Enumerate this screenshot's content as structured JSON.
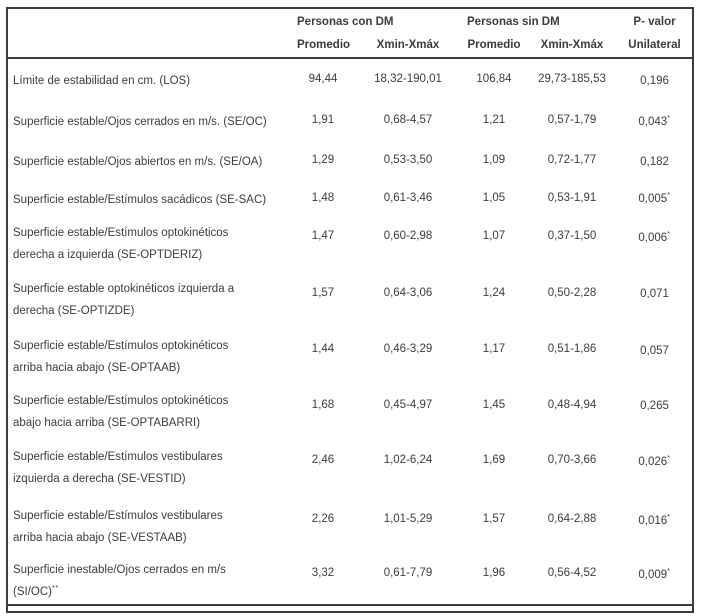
{
  "colors": {
    "text": "#3c3c3c",
    "border": "#3c3c3c",
    "background": "#ffffff"
  },
  "table": {
    "header": {
      "group_con_dm": "Personas con DM",
      "group_sin_dm": "Personas sin DM",
      "pvalor_line1": "P- valor",
      "pvalor_line2": "Unilateral",
      "sub_promedio_con": "Promedio",
      "sub_range_con": "Xmin-Xmáx",
      "sub_promedio_sin": "Promedio",
      "sub_range_sin": "Xmin-Xmáx"
    },
    "rows": [
      {
        "label": "Límite de estabilidad en cm. (LOS)",
        "label_sup": "",
        "mean_dm": "94,44",
        "range_dm": "18,32-190,01",
        "mean_sin": "106,84",
        "range_sin": "29,73-185,53",
        "p": "0,196",
        "p_sup": ""
      },
      {
        "label": "Superficie estable/Ojos cerrados en m/s. (SE/OC)",
        "label_sup": "",
        "mean_dm": "1,91",
        "range_dm": "0,68-4,57",
        "mean_sin": "1,21",
        "range_sin": "0,57-1,79",
        "p": "0,043",
        "p_sup": "*"
      },
      {
        "label": "Superficie estable/Ojos abiertos en m/s. (SE/OA)",
        "label_sup": "",
        "mean_dm": "1,29",
        "range_dm": "0,53-3,50",
        "mean_sin": "1,09",
        "range_sin": "0,72-1,77",
        "p": "0,182",
        "p_sup": ""
      },
      {
        "label": "Superficie estable/Estímulos sacádicos (SE-SAC)",
        "label_sup": "",
        "mean_dm": "1,48",
        "range_dm": "0,61-3,46",
        "mean_sin": "1,05",
        "range_sin": "0,53-1,91",
        "p": "0,005",
        "p_sup": "*"
      },
      {
        "label": "Superficie estable/Estímulos optokinéticos\nderecha a izquierda (SE-OPTDERIZ)",
        "label_sup": "",
        "mean_dm": "1,47",
        "range_dm": "0,60-2,98",
        "mean_sin": "1,07",
        "range_sin": "0,37-1,50",
        "p": "0,006",
        "p_sup": "*"
      },
      {
        "label": "Superficie estable optokinéticos izquierda a\nderecha (SE-OPTIZDE)",
        "label_sup": "",
        "mean_dm": "1,57",
        "range_dm": "0,64-3,06",
        "mean_sin": "1,24",
        "range_sin": "0,50-2,28",
        "p": "0,071",
        "p_sup": ""
      },
      {
        "label": "Superficie estable/Estímulos optokinéticos\narriba hacia abajo (SE-OPTAAB)",
        "label_sup": "",
        "mean_dm": "1,44",
        "range_dm": "0,46-3,29",
        "mean_sin": "1,17",
        "range_sin": "0,51-1,86",
        "p": "0,057",
        "p_sup": ""
      },
      {
        "label": "Superficie estable/Estímulos optokinéticos\nabajo hacia arriba (SE-OPTABARRI)",
        "label_sup": "",
        "mean_dm": "1,68",
        "range_dm": "0,45-4,97",
        "mean_sin": "1,45",
        "range_sin": "0,48-4,94",
        "p": "0,265",
        "p_sup": ""
      },
      {
        "label": "Superficie estable/Estímulos vestibulares\nizquierda a derecha (SE-VESTID)",
        "label_sup": "",
        "mean_dm": "2,46",
        "range_dm": "1,02-6,24",
        "mean_sin": "1,69",
        "range_sin": "0,70-3,66",
        "p": "0,026",
        "p_sup": "*"
      },
      {
        "label": "Superficie estable/Estímulos vestibulares\narriba hacia abajo (SE-VESTAAB)",
        "label_sup": "",
        "mean_dm": "2,26",
        "range_dm": "1,01-5,29",
        "mean_sin": "1,57",
        "range_sin": "0,64-2,88",
        "p": "0,016",
        "p_sup": "*"
      },
      {
        "label": "Superficie inestable/Ojos cerrados en m/s\n(SI/OC)",
        "label_sup": "**",
        "mean_dm": "3,32",
        "range_dm": "0,61-7,79",
        "mean_sin": "1,96",
        "range_sin": "0,56-4,52",
        "p": "0,009",
        "p_sup": "*"
      }
    ]
  }
}
